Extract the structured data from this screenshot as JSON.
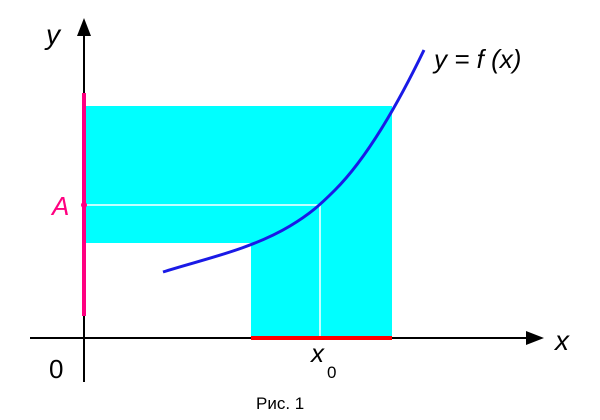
{
  "diagram": {
    "x_axis_label": "x",
    "y_axis_label": "y",
    "origin_label": "0",
    "point_a_label": "A",
    "x0_main": "x",
    "x0_subscript": "0",
    "function_label": "y = f (x)",
    "caption": "Рис. 1"
  },
  "colors": {
    "axis": "#000000",
    "curve": "#1a1ae6",
    "neighborhood_fill": "#00ffff",
    "neighborhood_A": "#ff0080",
    "x_interval": "#ff0000",
    "guide_lines": "#ffffff",
    "label_A": "#ff0080"
  }
}
